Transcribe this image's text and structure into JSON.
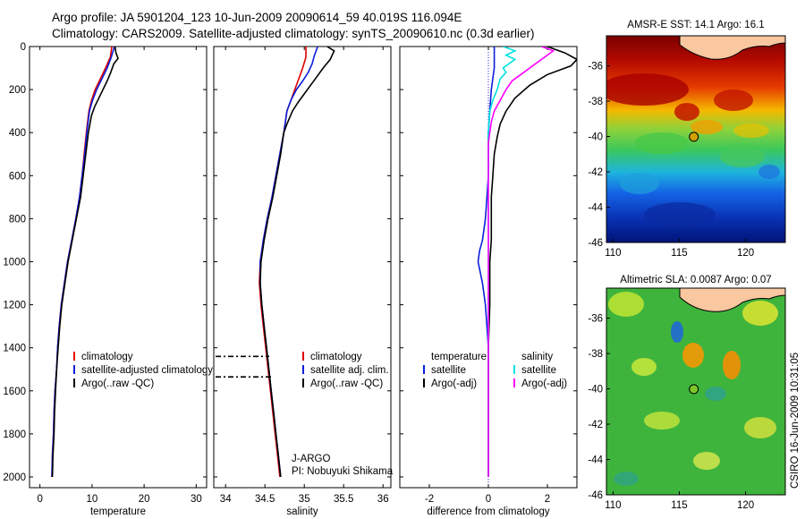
{
  "header": {
    "title_line1": "Argo profile: JA 5901204_123 10-Jun-2009 20090614_59 40.019S 116.094E",
    "title_line2": "Climatology: CARS2009. Satellite-adjusted climatology: synTS_20090610.nc (0.3d earlier)"
  },
  "side_label": "CSIRO 16-Jun-2009 10:31:05",
  "colors": {
    "climatology": "#e00000",
    "satellite": "#0a1edc",
    "argo": "#000000",
    "sat_salinity": "#00e0e0",
    "argo_salinity": "#ff00ff",
    "land": "#f9c7a0",
    "marker": "#7dc62a"
  },
  "chart_data": [
    {
      "type": "line",
      "panel": "temperature",
      "xlabel": "temperature",
      "xlim": [
        -2,
        32
      ],
      "xticks": [
        "0",
        "10",
        "20",
        "30"
      ],
      "ylim": [
        0,
        2050
      ],
      "y_reversed": true,
      "yticks": [
        "0",
        "200",
        "400",
        "600",
        "800",
        "1000",
        "1200",
        "1400",
        "1600",
        "1800",
        "2000"
      ],
      "legend": [
        "climatology",
        "satellite-adjusted climatology",
        "Argo(..raw -QC)"
      ],
      "series": [
        {
          "name": "climatology",
          "color": "#e00000",
          "points": [
            [
              13.8,
              0
            ],
            [
              13.5,
              50
            ],
            [
              12.6,
              100
            ],
            [
              11.6,
              150
            ],
            [
              10.6,
              200
            ],
            [
              9.9,
              250
            ],
            [
              9.4,
              300
            ],
            [
              8.9,
              400
            ],
            [
              8.5,
              500
            ],
            [
              8.1,
              600
            ],
            [
              7.6,
              700
            ],
            [
              6.9,
              800
            ],
            [
              6.1,
              900
            ],
            [
              5.3,
              1000
            ],
            [
              4.7,
              1100
            ],
            [
              4.1,
              1200
            ],
            [
              3.7,
              1300
            ],
            [
              3.4,
              1400
            ],
            [
              3.2,
              1500
            ],
            [
              2.9,
              1600
            ],
            [
              2.7,
              1700
            ],
            [
              2.6,
              1800
            ],
            [
              2.4,
              1900
            ],
            [
              2.3,
              2000
            ]
          ]
        },
        {
          "name": "satellite",
          "color": "#0a1edc",
          "points": [
            [
              14.3,
              0
            ],
            [
              13.7,
              50
            ],
            [
              12.9,
              100
            ],
            [
              11.9,
              150
            ],
            [
              10.9,
              200
            ],
            [
              10.1,
              250
            ],
            [
              9.5,
              300
            ],
            [
              9.0,
              400
            ],
            [
              8.6,
              500
            ],
            [
              8.1,
              600
            ],
            [
              7.6,
              700
            ],
            [
              6.9,
              800
            ],
            [
              6.1,
              900
            ],
            [
              5.3,
              1000
            ],
            [
              4.7,
              1100
            ],
            [
              4.1,
              1200
            ],
            [
              3.7,
              1300
            ],
            [
              3.4,
              1400
            ],
            [
              3.2,
              1500
            ],
            [
              2.9,
              1600
            ],
            [
              2.7,
              1700
            ],
            [
              2.6,
              1800
            ],
            [
              2.4,
              1900
            ],
            [
              2.3,
              2000
            ]
          ]
        },
        {
          "name": "Argo(..raw -QC)",
          "color": "#000000",
          "points": [
            [
              14.4,
              0
            ],
            [
              14.6,
              30
            ],
            [
              15.0,
              55
            ],
            [
              14.2,
              80
            ],
            [
              13.6,
              120
            ],
            [
              12.9,
              160
            ],
            [
              12.1,
              200
            ],
            [
              11.3,
              240
            ],
            [
              10.5,
              280
            ],
            [
              9.9,
              320
            ],
            [
              9.3,
              400
            ],
            [
              8.8,
              500
            ],
            [
              8.3,
              600
            ],
            [
              7.8,
              700
            ],
            [
              7.0,
              800
            ],
            [
              6.2,
              900
            ],
            [
              5.4,
              1000
            ],
            [
              4.8,
              1100
            ],
            [
              4.2,
              1200
            ],
            [
              3.8,
              1300
            ],
            [
              3.5,
              1400
            ],
            [
              3.2,
              1500
            ],
            [
              3.0,
              1600
            ],
            [
              2.8,
              1700
            ],
            [
              2.7,
              1800
            ],
            [
              2.5,
              1900
            ],
            [
              2.4,
              2000
            ]
          ]
        }
      ]
    },
    {
      "type": "line",
      "panel": "salinity",
      "xlabel": "salinity",
      "xlim": [
        33.85,
        36.1
      ],
      "xticks": [
        "34",
        "34.5",
        "35",
        "35.5",
        "36"
      ],
      "ylim": [
        0,
        2050
      ],
      "y_reversed": true,
      "legend": [
        "climatology",
        "satellite adj. clim.",
        "Argo(..raw -QC)"
      ],
      "annotations": [
        "J-ARGO",
        "PI: Nobuyuki Shikama"
      ],
      "series": [
        {
          "name": "climatology",
          "color": "#e00000",
          "points": [
            [
              35.02,
              0
            ],
            [
              35.02,
              50
            ],
            [
              34.98,
              100
            ],
            [
              34.93,
              150
            ],
            [
              34.88,
              200
            ],
            [
              34.82,
              260
            ],
            [
              34.78,
              300
            ],
            [
              34.74,
              400
            ],
            [
              34.69,
              500
            ],
            [
              34.64,
              600
            ],
            [
              34.59,
              700
            ],
            [
              34.53,
              800
            ],
            [
              34.48,
              900
            ],
            [
              34.44,
              1000
            ],
            [
              34.43,
              1100
            ],
            [
              34.45,
              1200
            ],
            [
              34.48,
              1300
            ],
            [
              34.51,
              1400
            ],
            [
              34.54,
              1500
            ],
            [
              34.57,
              1600
            ],
            [
              34.6,
              1700
            ],
            [
              34.63,
              1800
            ],
            [
              34.66,
              1900
            ],
            [
              34.69,
              2000
            ]
          ]
        },
        {
          "name": "satellite adj. clim.",
          "color": "#0a1edc",
          "points": [
            [
              35.17,
              0
            ],
            [
              35.13,
              40
            ],
            [
              35.1,
              80
            ],
            [
              35.05,
              120
            ],
            [
              34.98,
              160
            ],
            [
              34.9,
              200
            ],
            [
              34.83,
              250
            ],
            [
              34.78,
              300
            ],
            [
              34.74,
              400
            ],
            [
              34.69,
              500
            ],
            [
              34.64,
              600
            ],
            [
              34.59,
              700
            ],
            [
              34.53,
              800
            ],
            [
              34.48,
              900
            ],
            [
              34.44,
              1000
            ],
            [
              34.44,
              1100
            ],
            [
              34.46,
              1200
            ],
            [
              34.49,
              1300
            ],
            [
              34.52,
              1400
            ],
            [
              34.55,
              1500
            ],
            [
              34.58,
              1600
            ],
            [
              34.61,
              1700
            ],
            [
              34.64,
              1800
            ],
            [
              34.67,
              1900
            ],
            [
              34.7,
              2000
            ]
          ]
        },
        {
          "name": "Argo(..raw -QC)",
          "color": "#000000",
          "points": [
            [
              35.29,
              0
            ],
            [
              35.38,
              20
            ],
            [
              35.33,
              60
            ],
            [
              35.24,
              100
            ],
            [
              35.16,
              140
            ],
            [
              35.08,
              180
            ],
            [
              35.0,
              220
            ],
            [
              34.92,
              260
            ],
            [
              34.85,
              300
            ],
            [
              34.78,
              360
            ],
            [
              34.74,
              400
            ],
            [
              34.7,
              500
            ],
            [
              34.65,
              600
            ],
            [
              34.6,
              700
            ],
            [
              34.54,
              800
            ],
            [
              34.49,
              900
            ],
            [
              34.45,
              1000
            ],
            [
              34.44,
              1100
            ],
            [
              34.46,
              1200
            ],
            [
              34.49,
              1300
            ],
            [
              34.52,
              1400
            ],
            [
              34.55,
              1500
            ],
            [
              34.58,
              1600
            ],
            [
              34.61,
              1700
            ],
            [
              34.64,
              1800
            ],
            [
              34.67,
              1900
            ],
            [
              34.7,
              2000
            ]
          ]
        }
      ]
    },
    {
      "type": "line",
      "panel": "difference",
      "xlabel": "difference from climatology",
      "xlim": [
        -3,
        3
      ],
      "xticks": [
        "-2",
        "0",
        "2"
      ],
      "ylim": [
        0,
        2050
      ],
      "y_reversed": true,
      "legend_temperature": [
        "temperature",
        "satellite",
        "Argo(-adj)"
      ],
      "legend_salinity": [
        "salinity",
        "satellite",
        "Argo(-adj)"
      ],
      "series": [
        {
          "name": "temperature satellite",
          "color": "#0a1edc",
          "points": [
            [
              0.2,
              0
            ],
            [
              0.2,
              100
            ],
            [
              0.1,
              200
            ],
            [
              0.05,
              300
            ],
            [
              0.0,
              400
            ],
            [
              0.0,
              600
            ],
            [
              -0.05,
              700
            ],
            [
              -0.1,
              800
            ],
            [
              -0.2,
              900
            ],
            [
              -0.3,
              950
            ],
            [
              -0.35,
              1000
            ],
            [
              -0.2,
              1100
            ],
            [
              -0.1,
              1200
            ],
            [
              -0.05,
              1300
            ],
            [
              0.0,
              1400
            ],
            [
              0.0,
              2000
            ]
          ]
        },
        {
          "name": "temperature Argo(-adj)",
          "color": "#000000",
          "points": [
            [
              2.0,
              0
            ],
            [
              2.6,
              30
            ],
            [
              3.0,
              60
            ],
            [
              2.8,
              90
            ],
            [
              2.0,
              130
            ],
            [
              1.4,
              180
            ],
            [
              0.9,
              240
            ],
            [
              0.6,
              300
            ],
            [
              0.4,
              360
            ],
            [
              0.3,
              420
            ],
            [
              0.2,
              500
            ],
            [
              0.15,
              600
            ],
            [
              0.1,
              700
            ],
            [
              0.1,
              800
            ],
            [
              0.1,
              900
            ],
            [
              0.05,
              1000
            ],
            [
              0.05,
              1100
            ],
            [
              0.05,
              1200
            ],
            [
              0.0,
              1400
            ],
            [
              0.0,
              2000
            ]
          ]
        },
        {
          "name": "salinity satellite",
          "color": "#00e0e0",
          "points": [
            [
              0.5,
              0
            ],
            [
              0.9,
              20
            ],
            [
              0.6,
              40
            ],
            [
              0.9,
              60
            ],
            [
              0.7,
              80
            ],
            [
              0.5,
              100
            ],
            [
              0.6,
              120
            ],
            [
              0.4,
              150
            ],
            [
              0.3,
              200
            ],
            [
              0.15,
              250
            ],
            [
              0.05,
              300
            ],
            [
              0.0,
              400
            ],
            [
              0.0,
              2000
            ]
          ]
        },
        {
          "name": "salinity Argo(-adj)",
          "color": "#ff00ff",
          "points": [
            [
              1.8,
              0
            ],
            [
              2.2,
              20
            ],
            [
              2.0,
              40
            ],
            [
              1.8,
              60
            ],
            [
              1.6,
              80
            ],
            [
              1.4,
              100
            ],
            [
              1.1,
              130
            ],
            [
              0.8,
              160
            ],
            [
              0.6,
              200
            ],
            [
              0.4,
              250
            ],
            [
              0.2,
              300
            ],
            [
              0.1,
              350
            ],
            [
              0.05,
              400
            ],
            [
              0.0,
              450
            ],
            [
              0.0,
              2000
            ]
          ]
        }
      ]
    },
    {
      "type": "heatmap",
      "panel": "sst_map",
      "title": "AMSR-E SST: 14.1 Argo: 16.1",
      "xticks": [
        "110",
        "115",
        "120"
      ],
      "yticks": [
        "-36",
        "-38",
        "-40",
        "-42",
        "-44",
        "-46"
      ],
      "xlim": [
        109.5,
        123
      ],
      "ylim": [
        -46,
        -34.3
      ],
      "float_position": [
        116.094,
        -40.019
      ]
    },
    {
      "type": "heatmap",
      "panel": "sla_map",
      "title": "Altimetric SLA: 0.0087 Argo: 0.07",
      "xticks": [
        "110",
        "115",
        "120"
      ],
      "yticks": [
        "-36",
        "-38",
        "-40",
        "-42",
        "-44",
        "-46"
      ],
      "xlim": [
        109.5,
        123
      ],
      "ylim": [
        -46,
        -34.3
      ],
      "float_position": [
        116.094,
        -40.019
      ]
    }
  ]
}
